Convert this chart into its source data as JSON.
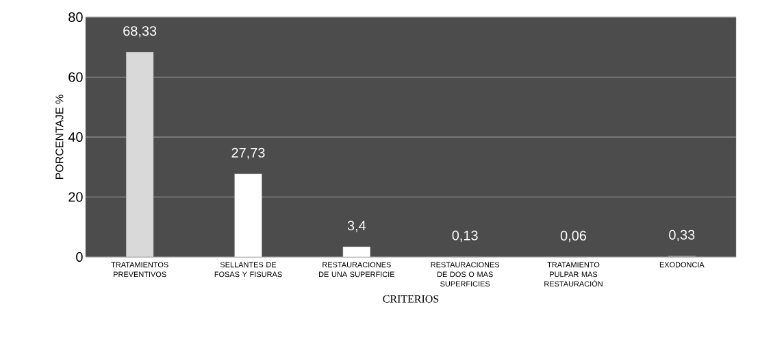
{
  "chart_data": {
    "type": "bar",
    "xlabel": "CRITERIOS",
    "ylabel": "PORCENTAJE %",
    "categories": [
      "TRATAMIENTOS PREVENTIVOS",
      "SELLANTES DE FOSAS Y FISURAS",
      "RESTAURACIONES DE UNA SUPERFICIE",
      "RESTAURACIONES DE DOS O MAS SUPERFICIES",
      "TRATAMIENTO PULPAR MAS RESTAURACIÓN",
      "EXODONCIA"
    ],
    "values": [
      68.33,
      27.73,
      3.4,
      0.13,
      0.06,
      0.33
    ],
    "value_labels": [
      "68,33",
      "27,73",
      "3,4",
      "0,13",
      "0,06",
      "0,33"
    ],
    "colors": [
      "#d9d9d9",
      "#ffffff",
      "#ffffff",
      "#a6a6a6",
      "#a6a6a6",
      "#a6a6a6"
    ],
    "ylim": [
      0,
      80
    ],
    "yticks": [
      0,
      20,
      40,
      60,
      80
    ],
    "grid": "y"
  }
}
